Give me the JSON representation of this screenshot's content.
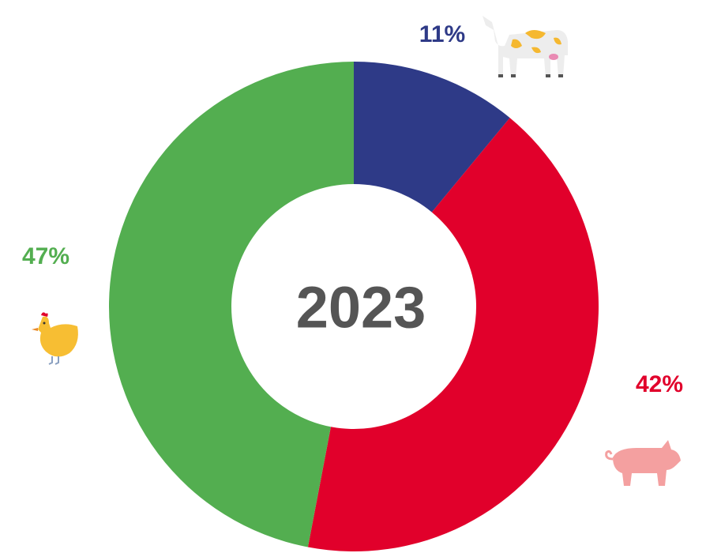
{
  "chart_data": {
    "type": "donut",
    "center_label": "2023",
    "values": [
      11,
      42,
      47
    ],
    "value_labels": [
      "11%",
      "42%",
      "47%"
    ],
    "colors": [
      "#2e3a87",
      "#e1002b",
      "#53ae50"
    ]
  }
}
